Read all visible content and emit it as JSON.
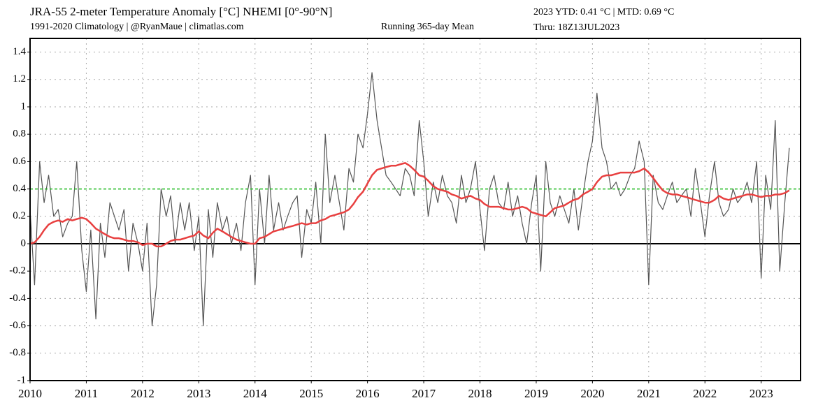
{
  "chart_data": {
    "type": "line",
    "title": "JRA-55 2-meter Temperature Anomaly [°C] NHEMI [0°-90°N]",
    "subtitle": "1991-2020 Climatology | @RyanMaue | climatlas.com",
    "annotations": [
      "2023 YTD: 0.41 °C | MTD: 0.69 °C",
      "Thru: 18Z13JUL2023"
    ],
    "x": [
      2010,
      2010.08,
      2010.17,
      2010.25,
      2010.33,
      2010.42,
      2010.5,
      2010.58,
      2010.67,
      2010.75,
      2010.83,
      2010.92,
      2011,
      2011.08,
      2011.17,
      2011.25,
      2011.33,
      2011.42,
      2011.5,
      2011.58,
      2011.67,
      2011.75,
      2011.83,
      2011.92,
      2012,
      2012.08,
      2012.17,
      2012.25,
      2012.33,
      2012.42,
      2012.5,
      2012.58,
      2012.67,
      2012.75,
      2012.83,
      2012.92,
      2013,
      2013.08,
      2013.17,
      2013.25,
      2013.33,
      2013.42,
      2013.5,
      2013.58,
      2013.67,
      2013.75,
      2013.83,
      2013.92,
      2014,
      2014.08,
      2014.17,
      2014.25,
      2014.33,
      2014.42,
      2014.5,
      2014.58,
      2014.67,
      2014.75,
      2014.83,
      2014.92,
      2015,
      2015.08,
      2015.17,
      2015.25,
      2015.33,
      2015.42,
      2015.5,
      2015.58,
      2015.67,
      2015.75,
      2015.83,
      2015.92,
      2016,
      2016.08,
      2016.17,
      2016.25,
      2016.33,
      2016.42,
      2016.5,
      2016.58,
      2016.67,
      2016.75,
      2016.83,
      2016.92,
      2017,
      2017.08,
      2017.17,
      2017.25,
      2017.33,
      2017.42,
      2017.5,
      2017.58,
      2017.67,
      2017.75,
      2017.83,
      2017.92,
      2018,
      2018.08,
      2018.17,
      2018.25,
      2018.33,
      2018.42,
      2018.5,
      2018.58,
      2018.67,
      2018.75,
      2018.83,
      2018.92,
      2019,
      2019.08,
      2019.17,
      2019.25,
      2019.33,
      2019.42,
      2019.5,
      2019.58,
      2019.67,
      2019.75,
      2019.83,
      2019.92,
      2020,
      2020.08,
      2020.17,
      2020.25,
      2020.33,
      2020.42,
      2020.5,
      2020.58,
      2020.67,
      2020.75,
      2020.83,
      2020.92,
      2021,
      2021.08,
      2021.17,
      2021.25,
      2021.33,
      2021.42,
      2021.5,
      2021.58,
      2021.67,
      2021.75,
      2021.83,
      2021.92,
      2022,
      2022.08,
      2022.17,
      2022.25,
      2022.33,
      2022.42,
      2022.5,
      2022.58,
      2022.67,
      2022.75,
      2022.83,
      2022.92,
      2023,
      2023.08,
      2023.17,
      2023.25,
      2023.33,
      2023.42,
      2023.5
    ],
    "series": [
      {
        "color": "#555555",
        "values": [
          0.25,
          -0.3,
          0.6,
          0.3,
          0.5,
          0.2,
          0.25,
          0.05,
          0.15,
          0.2,
          0.6,
          -0.05,
          -0.35,
          0.1,
          -0.55,
          0.15,
          -0.1,
          0.3,
          0.2,
          0.1,
          0.25,
          -0.2,
          0.15,
          0.0,
          -0.2,
          0.15,
          -0.6,
          -0.3,
          0.4,
          0.2,
          0.35,
          0.0,
          0.3,
          0.1,
          0.3,
          -0.05,
          0.2,
          -0.6,
          0.25,
          -0.1,
          0.3,
          0.1,
          0.2,
          0.0,
          0.15,
          -0.05,
          0.3,
          0.5,
          -0.3,
          0.4,
          0.0,
          0.5,
          0.1,
          0.3,
          0.1,
          0.2,
          0.3,
          0.35,
          -0.1,
          0.25,
          0.15,
          0.45,
          0.0,
          0.8,
          0.3,
          0.5,
          0.3,
          0.1,
          0.55,
          0.45,
          0.8,
          0.7,
          0.95,
          1.25,
          0.9,
          0.7,
          0.5,
          0.45,
          0.4,
          0.35,
          0.55,
          0.5,
          0.35,
          0.9,
          0.6,
          0.2,
          0.45,
          0.3,
          0.5,
          0.35,
          0.3,
          0.15,
          0.5,
          0.3,
          0.4,
          0.6,
          0.25,
          -0.05,
          0.4,
          0.5,
          0.3,
          0.25,
          0.45,
          0.2,
          0.35,
          0.15,
          0.0,
          0.3,
          0.5,
          -0.2,
          0.6,
          0.3,
          0.2,
          0.35,
          0.25,
          0.15,
          0.4,
          0.1,
          0.35,
          0.6,
          0.75,
          1.1,
          0.7,
          0.6,
          0.4,
          0.45,
          0.35,
          0.4,
          0.5,
          0.55,
          0.75,
          0.6,
          -0.3,
          0.5,
          0.3,
          0.25,
          0.35,
          0.45,
          0.3,
          0.35,
          0.4,
          0.2,
          0.55,
          0.3,
          0.05,
          0.35,
          0.6,
          0.3,
          0.2,
          0.25,
          0.4,
          0.3,
          0.35,
          0.45,
          0.3,
          0.6,
          -0.25,
          0.5,
          0.25,
          0.9,
          -0.2,
          0.3,
          0.7
        ]
      },
      {
        "name": "Running 365-day Mean",
        "color": "#e84040",
        "values": [
          0,
          0.01,
          0.05,
          0.1,
          0.14,
          0.16,
          0.17,
          0.16,
          0.18,
          0.17,
          0.18,
          0.19,
          0.18,
          0.15,
          0.11,
          0.09,
          0.07,
          0.05,
          0.04,
          0.04,
          0.03,
          0.02,
          0.02,
          0.01,
          -0.01,
          0.0,
          0.0,
          -0.02,
          -0.02,
          0.0,
          0.02,
          0.03,
          0.03,
          0.04,
          0.05,
          0.06,
          0.09,
          0.06,
          0.04,
          0.08,
          0.11,
          0.09,
          0.07,
          0.05,
          0.03,
          0.02,
          0.01,
          0.0,
          0.0,
          0.04,
          0.05,
          0.07,
          0.09,
          0.1,
          0.11,
          0.12,
          0.13,
          0.14,
          0.15,
          0.14,
          0.15,
          0.15,
          0.17,
          0.18,
          0.2,
          0.21,
          0.22,
          0.23,
          0.25,
          0.29,
          0.34,
          0.38,
          0.44,
          0.5,
          0.54,
          0.55,
          0.56,
          0.57,
          0.57,
          0.58,
          0.59,
          0.57,
          0.54,
          0.5,
          0.49,
          0.46,
          0.42,
          0.4,
          0.39,
          0.38,
          0.36,
          0.35,
          0.33,
          0.34,
          0.35,
          0.33,
          0.32,
          0.29,
          0.27,
          0.27,
          0.27,
          0.26,
          0.25,
          0.25,
          0.26,
          0.27,
          0.26,
          0.23,
          0.22,
          0.21,
          0.2,
          0.23,
          0.26,
          0.27,
          0.28,
          0.3,
          0.32,
          0.33,
          0.36,
          0.38,
          0.4,
          0.45,
          0.49,
          0.5,
          0.5,
          0.51,
          0.52,
          0.52,
          0.52,
          0.52,
          0.53,
          0.55,
          0.52,
          0.48,
          0.43,
          0.39,
          0.37,
          0.36,
          0.36,
          0.35,
          0.34,
          0.33,
          0.32,
          0.31,
          0.3,
          0.3,
          0.32,
          0.35,
          0.33,
          0.32,
          0.33,
          0.34,
          0.35,
          0.36,
          0.36,
          0.35,
          0.34,
          0.35,
          0.35,
          0.36,
          0.36,
          0.37,
          0.39
        ]
      }
    ],
    "reference_line": {
      "value": 0.4,
      "color": "#22bb22"
    },
    "xlim": [
      2010,
      2023.7
    ],
    "xticks": [
      2010,
      2011,
      2012,
      2013,
      2014,
      2015,
      2016,
      2017,
      2018,
      2019,
      2020,
      2021,
      2022,
      2023
    ],
    "ylim": [
      -1,
      1.5
    ],
    "yticks": [
      -1,
      -0.8,
      -0.6,
      -0.4,
      -0.2,
      0,
      0.2,
      0.4,
      0.6,
      0.8,
      1,
      1.2,
      1.4
    ],
    "grid": true
  }
}
